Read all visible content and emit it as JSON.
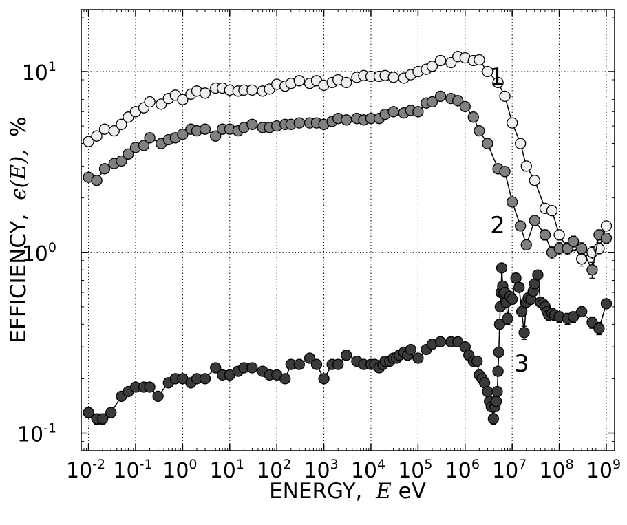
{
  "chart_data": {
    "type": "scatter",
    "xscale": "log",
    "yscale": "log",
    "xlim": [
      0.007,
      1500000000
    ],
    "ylim": [
      0.08,
      22
    ],
    "grid": true,
    "xlabel": {
      "prefix": "ENERGY,",
      "symbol": "E",
      "suffix": "eV"
    },
    "ylabel": {
      "prefix": "EFFICIENCY,",
      "symbol": "ϵ(E),",
      "suffix": "%"
    },
    "xticks": [
      {
        "mantissa": "10",
        "exponent": "-2",
        "value": 0.01
      },
      {
        "mantissa": "10",
        "exponent": "-1",
        "value": 0.1
      },
      {
        "mantissa": "10",
        "exponent": "0",
        "value": 1
      },
      {
        "mantissa": "10",
        "exponent": "1",
        "value": 10
      },
      {
        "mantissa": "10",
        "exponent": "2",
        "value": 100
      },
      {
        "mantissa": "10",
        "exponent": "3",
        "value": 1000
      },
      {
        "mantissa": "10",
        "exponent": "4",
        "value": 10000
      },
      {
        "mantissa": "10",
        "exponent": "5",
        "value": 100000
      },
      {
        "mantissa": "10",
        "exponent": "6",
        "value": 1000000
      },
      {
        "mantissa": "10",
        "exponent": "7",
        "value": 10000000
      },
      {
        "mantissa": "10",
        "exponent": "8",
        "value": 100000000
      },
      {
        "mantissa": "10",
        "exponent": "9",
        "value": 1000000000
      }
    ],
    "yticks": [
      {
        "mantissa": "10",
        "exponent": "-1",
        "value": 0.1
      },
      {
        "mantissa": "10",
        "exponent": "0",
        "value": 1
      },
      {
        "mantissa": "10",
        "exponent": "1",
        "value": 10
      }
    ],
    "series": [
      {
        "name": "1",
        "fill": "#eeeeee",
        "x": [
          0.01,
          0.015,
          0.022,
          0.035,
          0.05,
          0.07,
          0.1,
          0.15,
          0.2,
          0.35,
          0.5,
          0.7,
          1,
          1.5,
          2,
          3,
          5,
          7,
          10,
          15,
          20,
          30,
          50,
          70,
          100,
          150,
          200,
          300,
          500,
          700,
          1000,
          1500,
          2000,
          3000,
          5000,
          7000,
          10000,
          15000,
          20000,
          30000,
          50000,
          70000,
          100000,
          150000,
          200000,
          300000,
          500000,
          700000,
          1000000,
          1500000,
          2000000,
          3000000,
          5000000,
          7000000,
          10000000,
          15000000,
          20000000,
          30000000,
          50000000,
          70000000,
          100000000,
          150000000,
          200000000,
          300000000,
          500000000,
          700000000,
          1000000000
        ],
        "y": [
          4.1,
          4.4,
          4.8,
          4.7,
          5.1,
          5.6,
          6.0,
          6.3,
          6.8,
          6.6,
          7.1,
          7.4,
          7.0,
          7.5,
          7.8,
          7.6,
          8.1,
          8.1,
          7.9,
          7.8,
          7.9,
          7.9,
          7.8,
          8.0,
          8.5,
          8.3,
          8.6,
          8.9,
          8.6,
          8.9,
          8.4,
          8.7,
          9.0,
          8.7,
          9.3,
          9.5,
          9.4,
          9.4,
          9.5,
          9.3,
          9.2,
          9.6,
          10.0,
          10.3,
          10.7,
          11.5,
          11.2,
          12.1,
          11.9,
          11.5,
          11.6,
          10.0,
          8.7,
          7.3,
          5.2,
          4.0,
          3.0,
          2.5,
          1.75,
          1.7,
          1.25,
          1.05,
          1.1,
          0.92,
          1.0,
          1.05,
          1.4
        ],
        "err": [
          0,
          0,
          0,
          0,
          0,
          0,
          0,
          0,
          0,
          0,
          0,
          0,
          0,
          0,
          0,
          0,
          0,
          0,
          0,
          0,
          0,
          0,
          0,
          0,
          0,
          0,
          0,
          0,
          0,
          0,
          0,
          0,
          0,
          0,
          0,
          0,
          0,
          0,
          0,
          0,
          0,
          0,
          0,
          0,
          0,
          0,
          0,
          0,
          0,
          0,
          0,
          0,
          0,
          0,
          0,
          0,
          0,
          0,
          0.05,
          0.05,
          0.08,
          0.08,
          0.08,
          0.08,
          0.08,
          0.08,
          0.08
        ]
      },
      {
        "name": "2",
        "fill": "#808080",
        "x": [
          0.01,
          0.015,
          0.022,
          0.035,
          0.05,
          0.07,
          0.1,
          0.15,
          0.2,
          0.35,
          0.5,
          0.7,
          1,
          1.5,
          2,
          3,
          5,
          7,
          10,
          15,
          20,
          30,
          50,
          70,
          100,
          150,
          200,
          300,
          500,
          700,
          1000,
          1500,
          2000,
          3000,
          5000,
          7000,
          10000,
          15000,
          20000,
          30000,
          50000,
          70000,
          100000,
          150000,
          200000,
          300000,
          500000,
          700000,
          1000000,
          1500000,
          2000000,
          3000000,
          5000000,
          7000000,
          10000000,
          15000000,
          20000000,
          30000000,
          50000000,
          70000000,
          100000000,
          150000000,
          200000000,
          300000000,
          500000000,
          700000000,
          1000000000
        ],
        "y": [
          2.6,
          2.5,
          2.9,
          3.1,
          3.2,
          3.5,
          3.8,
          3.9,
          4.3,
          4.0,
          4.2,
          4.3,
          4.5,
          4.8,
          4.7,
          4.8,
          4.4,
          4.8,
          4.8,
          4.7,
          4.9,
          5.1,
          4.9,
          4.9,
          5.0,
          5.1,
          5.1,
          5.2,
          5.2,
          5.2,
          5.1,
          5.3,
          5.5,
          5.4,
          5.5,
          5.4,
          5.5,
          5.5,
          5.8,
          6.0,
          5.9,
          6.1,
          6.0,
          6.7,
          6.8,
          7.3,
          7.1,
          6.9,
          6.4,
          5.6,
          4.7,
          4.0,
          2.9,
          2.8,
          1.9,
          1.4,
          1.1,
          1.5,
          1.25,
          1.0,
          1.05,
          1.05,
          1.15,
          1.05,
          0.8,
          1.25,
          1.2
        ],
        "err": [
          0,
          0,
          0,
          0,
          0,
          0,
          0,
          0,
          0,
          0,
          0,
          0,
          0,
          0,
          0,
          0,
          0,
          0,
          0,
          0,
          0,
          0,
          0,
          0,
          0,
          0,
          0,
          0,
          0,
          0,
          0,
          0,
          0,
          0,
          0,
          0,
          0,
          0,
          0,
          0,
          0,
          0,
          0,
          0,
          0,
          0,
          0,
          0,
          0,
          0,
          0,
          0,
          0,
          0,
          0,
          0,
          0,
          0.05,
          0.08,
          0.08,
          0.08,
          0.08,
          0.08,
          0.08,
          0.08,
          0.08,
          0.08
        ]
      },
      {
        "name": "3",
        "fill": "#3a3a3a",
        "x": [
          0.01,
          0.015,
          0.02,
          0.03,
          0.05,
          0.07,
          0.1,
          0.15,
          0.2,
          0.3,
          0.5,
          0.7,
          1,
          1.5,
          2,
          3,
          5,
          7,
          10,
          15,
          20,
          30,
          50,
          70,
          100,
          150,
          200,
          300,
          500,
          700,
          1000,
          1500,
          2000,
          3000,
          5000,
          7000,
          10000,
          12000,
          15000,
          18000,
          20000,
          25000,
          30000,
          35000,
          40000,
          50000,
          60000,
          70000,
          100000,
          150000,
          200000,
          300000,
          500000,
          700000,
          1000000,
          1200000,
          1500000,
          1800000,
          2000000,
          2300000,
          2600000,
          3000000,
          3300000,
          3600000,
          4000000,
          4300000,
          4600000,
          4800000,
          5000000,
          5200000,
          5400000,
          5600000,
          5800000,
          6000000,
          6300000,
          6600000,
          7000000,
          7500000,
          8000000,
          9000000,
          10000000,
          12000000,
          14000000,
          16000000,
          18000000,
          20000000,
          22000000,
          25000000,
          28000000,
          30000000,
          35000000,
          40000000,
          45000000,
          50000000,
          55000000,
          60000000,
          70000000,
          80000000,
          100000000,
          150000000,
          200000000,
          300000000,
          500000000,
          700000000,
          1000000000
        ],
        "y": [
          0.13,
          0.12,
          0.12,
          0.13,
          0.16,
          0.17,
          0.18,
          0.18,
          0.18,
          0.16,
          0.19,
          0.2,
          0.2,
          0.19,
          0.2,
          0.2,
          0.23,
          0.21,
          0.21,
          0.22,
          0.23,
          0.23,
          0.22,
          0.21,
          0.21,
          0.2,
          0.24,
          0.24,
          0.26,
          0.24,
          0.2,
          0.24,
          0.24,
          0.27,
          0.25,
          0.24,
          0.24,
          0.24,
          0.23,
          0.24,
          0.25,
          0.25,
          0.26,
          0.26,
          0.27,
          0.28,
          0.27,
          0.29,
          0.26,
          0.29,
          0.31,
          0.32,
          0.32,
          0.32,
          0.3,
          0.27,
          0.25,
          0.25,
          0.21,
          0.2,
          0.19,
          0.17,
          0.15,
          0.14,
          0.12,
          0.14,
          0.15,
          0.17,
          0.22,
          0.28,
          0.4,
          0.5,
          0.6,
          0.82,
          0.65,
          0.59,
          0.6,
          0.53,
          0.43,
          0.57,
          0.55,
          0.72,
          0.64,
          0.47,
          0.36,
          0.53,
          0.56,
          0.55,
          0.61,
          0.67,
          0.75,
          0.53,
          0.52,
          0.5,
          0.47,
          0.45,
          0.46,
          0.45,
          0.44,
          0.43,
          0.44,
          0.47,
          0.41,
          0.38,
          0.52
        ],
        "err": [
          0.008,
          0.008,
          0.008,
          0.008,
          0.008,
          0.008,
          0.008,
          0.008,
          0.008,
          0.008,
          0.008,
          0.008,
          0.008,
          0.008,
          0.008,
          0.008,
          0.008,
          0.008,
          0.008,
          0.008,
          0.008,
          0.008,
          0.008,
          0.008,
          0.008,
          0.008,
          0.008,
          0.008,
          0.008,
          0.008,
          0.008,
          0.008,
          0.008,
          0.008,
          0.008,
          0.008,
          0.008,
          0.008,
          0.008,
          0.008,
          0.008,
          0.008,
          0.008,
          0.008,
          0.008,
          0.008,
          0.008,
          0.008,
          0.008,
          0.008,
          0.008,
          0.008,
          0.008,
          0.008,
          0.008,
          0.008,
          0.008,
          0.008,
          0.008,
          0.008,
          0.008,
          0.008,
          0.008,
          0.008,
          0.008,
          0.008,
          0.008,
          0.008,
          0.008,
          0.008,
          0.02,
          0.02,
          0.03,
          0.03,
          0.03,
          0.03,
          0.03,
          0.03,
          0.03,
          0.03,
          0.03,
          0.03,
          0.03,
          0.03,
          0.03,
          0.03,
          0.03,
          0.03,
          0.03,
          0.03,
          0.03,
          0.03,
          0.03,
          0.03,
          0.03,
          0.03,
          0.03,
          0.03,
          0.03,
          0.03,
          0.03,
          0.03,
          0.03,
          0.03,
          0.03
        ]
      }
    ]
  }
}
